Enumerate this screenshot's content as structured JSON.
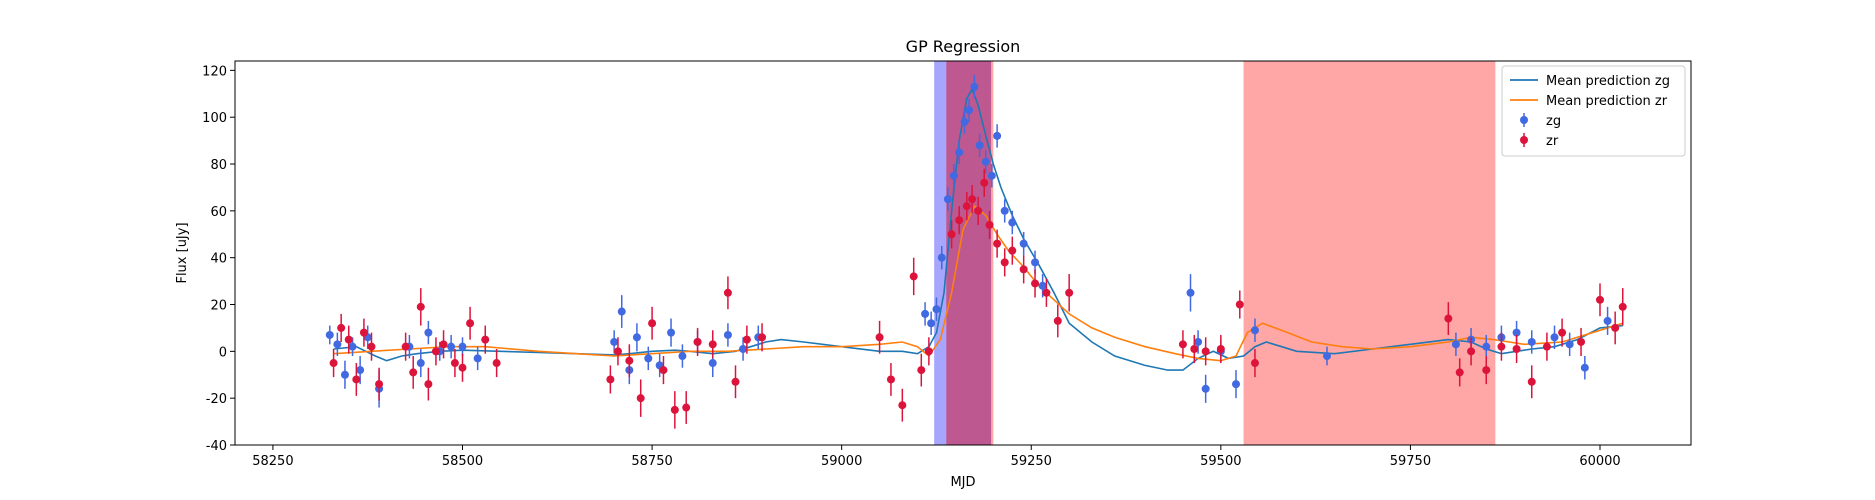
{
  "chart_data": {
    "type": "scatter",
    "title": "GP Regression",
    "xlabel": "MJD",
    "ylabel": "Flux [uJy]",
    "xlim": [
      58200,
      60120
    ],
    "ylim": [
      -40,
      124
    ],
    "xticks": [
      58250,
      58500,
      58750,
      59000,
      59250,
      59500,
      59750,
      60000
    ],
    "yticks": [
      -40,
      -20,
      0,
      20,
      40,
      60,
      80,
      100,
      120
    ],
    "grid": false,
    "legend_position": "upper right",
    "colors": {
      "zg_points": "#4169E1",
      "zr_points": "#DC143C",
      "zg_line": "#1f77b4",
      "zr_line": "#ff7f0e",
      "band_blue": "#6b6bff",
      "band_red": "#ff6b6b",
      "band_overlap": "#b44a8a"
    },
    "shaded_regions": [
      {
        "name": "zg",
        "color": "blue",
        "x": [
          59122,
          59197
        ]
      },
      {
        "name": "zr",
        "color": "red",
        "x": [
          59138,
          59200
        ]
      },
      {
        "name": "zr",
        "color": "red",
        "x": [
          59530,
          59862
        ]
      }
    ],
    "series": [
      {
        "name": "Mean prediction zg",
        "kind": "line",
        "x": [
          58330,
          58360,
          58385,
          58400,
          58420,
          58440,
          58470,
          58500,
          58550,
          58600,
          58650,
          58700,
          58720,
          58750,
          58780,
          58800,
          58830,
          58860,
          58880,
          58900,
          58920,
          58950,
          59000,
          59050,
          59080,
          59100,
          59115,
          59125,
          59135,
          59145,
          59155,
          59165,
          59172,
          59180,
          59190,
          59200,
          59210,
          59225,
          59240,
          59260,
          59280,
          59300,
          59330,
          59360,
          59400,
          59430,
          59450,
          59470,
          59490,
          59510,
          59530,
          59545,
          59560,
          59600,
          59650,
          59700,
          59750,
          59800,
          59830,
          59850,
          59870,
          59890,
          59910,
          59940,
          59970,
          60000,
          60030
        ],
        "y": [
          1,
          2,
          -2,
          -4,
          -2,
          -1,
          0,
          0.5,
          0,
          -0.5,
          -1,
          -1.5,
          -1,
          0,
          0.5,
          0,
          -1,
          0,
          2,
          4,
          5,
          4,
          2,
          0,
          0,
          -1,
          2,
          8,
          25,
          60,
          90,
          108,
          112,
          105,
          92,
          80,
          70,
          58,
          48,
          37,
          25,
          12,
          4,
          -2,
          -6,
          -8,
          -8,
          -3,
          0,
          -3,
          -2,
          2,
          4,
          0,
          -1,
          1,
          3,
          5,
          4,
          1,
          -1,
          0,
          1,
          2,
          5,
          10,
          11
        ]
      },
      {
        "name": "Mean prediction zr",
        "kind": "line",
        "x": [
          58330,
          58380,
          58430,
          58480,
          58530,
          58600,
          58650,
          58700,
          58750,
          58800,
          58850,
          58900,
          58950,
          59000,
          59050,
          59080,
          59100,
          59115,
          59130,
          59145,
          59160,
          59175,
          59190,
          59205,
          59220,
          59240,
          59260,
          59280,
          59300,
          59330,
          59360,
          59400,
          59440,
          59470,
          59500,
          59520,
          59535,
          59555,
          59580,
          59620,
          59660,
          59700,
          59750,
          59800,
          59830,
          59860,
          59900,
          59950,
          60000,
          60030
        ],
        "y": [
          -1,
          0,
          1,
          2,
          2,
          0,
          -1,
          -2,
          -1,
          0,
          0,
          1,
          2,
          2,
          3,
          4,
          2,
          -2,
          5,
          25,
          52,
          62,
          58,
          50,
          43,
          36,
          28,
          22,
          16,
          10,
          6,
          2,
          -1,
          -3,
          -4,
          -2,
          8,
          12,
          9,
          4,
          2,
          1,
          2,
          4,
          6,
          5,
          3,
          4,
          9,
          12
        ]
      },
      {
        "name": "zg",
        "kind": "errorbar",
        "marker": "o",
        "x": [
          58325,
          58335,
          58345,
          58355,
          58365,
          58375,
          58390,
          58430,
          58445,
          58455,
          58470,
          58485,
          58500,
          58520,
          58700,
          58710,
          58720,
          58730,
          58745,
          58760,
          58775,
          58790,
          58810,
          58830,
          58850,
          58870,
          58890,
          59110,
          59118,
          59125,
          59132,
          59140,
          59148,
          59155,
          59162,
          59168,
          59175,
          59182,
          59190,
          59198,
          59205,
          59215,
          59225,
          59240,
          59255,
          59265,
          59460,
          59470,
          59480,
          59500,
          59520,
          59545,
          59640,
          59810,
          59830,
          59850,
          59870,
          59890,
          59910,
          59940,
          59960,
          59980,
          60010
        ],
        "y": [
          7,
          3,
          -10,
          2,
          -8,
          6,
          -16,
          2,
          -5,
          8,
          0,
          2,
          2,
          -3,
          4,
          17,
          -8,
          6,
          -3,
          -6,
          8,
          -2,
          4,
          -5,
          7,
          1,
          6,
          16,
          12,
          18,
          40,
          65,
          75,
          85,
          98,
          103,
          113,
          88,
          81,
          75,
          92,
          60,
          55,
          46,
          38,
          28,
          25,
          4,
          -16,
          0,
          -14,
          9,
          -2,
          3,
          5,
          2,
          6,
          8,
          4,
          6,
          3,
          -7,
          13
        ],
        "yerr": [
          4,
          5,
          6,
          4,
          6,
          5,
          8,
          5,
          6,
          5,
          4,
          5,
          4,
          5,
          5,
          7,
          6,
          6,
          5,
          5,
          6,
          5,
          5,
          6,
          5,
          5,
          5,
          5,
          5,
          5,
          5,
          5,
          5,
          5,
          5,
          5,
          5,
          5,
          5,
          5,
          5,
          5,
          5,
          5,
          5,
          5,
          8,
          5,
          6,
          5,
          6,
          5,
          4,
          5,
          5,
          5,
          5,
          5,
          5,
          5,
          5,
          5,
          6
        ]
      },
      {
        "name": "zr",
        "kind": "errorbar",
        "marker": "o",
        "x": [
          58330,
          58340,
          58350,
          58360,
          58370,
          58380,
          58390,
          58425,
          58435,
          58445,
          58455,
          58465,
          58475,
          58490,
          58500,
          58510,
          58530,
          58545,
          58695,
          58705,
          58720,
          58735,
          58750,
          58765,
          58780,
          58795,
          58810,
          58830,
          58850,
          58860,
          58875,
          58895,
          59050,
          59065,
          59080,
          59095,
          59105,
          59115,
          59145,
          59155,
          59165,
          59172,
          59180,
          59188,
          59195,
          59205,
          59215,
          59225,
          59240,
          59255,
          59270,
          59285,
          59300,
          59450,
          59465,
          59480,
          59500,
          59525,
          59545,
          59800,
          59815,
          59830,
          59850,
          59870,
          59890,
          59910,
          59930,
          59950,
          59975,
          60000,
          60020,
          60030
        ],
        "y": [
          -5,
          10,
          5,
          -12,
          8,
          2,
          -14,
          2,
          -9,
          19,
          -14,
          0,
          3,
          -5,
          -7,
          12,
          5,
          -5,
          -12,
          0,
          -4,
          -20,
          12,
          -8,
          -25,
          -24,
          4,
          3,
          25,
          -13,
          5,
          6,
          6,
          -12,
          -23,
          32,
          -8,
          0,
          50,
          56,
          62,
          65,
          60,
          72,
          54,
          46,
          38,
          43,
          35,
          29,
          25,
          13,
          25,
          3,
          1,
          0,
          1,
          20,
          -5,
          14,
          -9,
          0,
          -8,
          2,
          1,
          -13,
          2,
          8,
          4,
          22,
          10,
          19
        ],
        "yerr": [
          6,
          6,
          6,
          7,
          6,
          6,
          7,
          6,
          7,
          8,
          7,
          6,
          6,
          6,
          6,
          7,
          6,
          6,
          6,
          6,
          7,
          8,
          7,
          6,
          8,
          7,
          6,
          6,
          7,
          7,
          6,
          6,
          7,
          7,
          7,
          8,
          7,
          6,
          6,
          6,
          6,
          6,
          6,
          6,
          6,
          6,
          6,
          6,
          6,
          6,
          6,
          7,
          8,
          6,
          6,
          6,
          6,
          6,
          6,
          7,
          6,
          6,
          6,
          6,
          6,
          7,
          6,
          6,
          6,
          7,
          7,
          8
        ]
      }
    ]
  }
}
